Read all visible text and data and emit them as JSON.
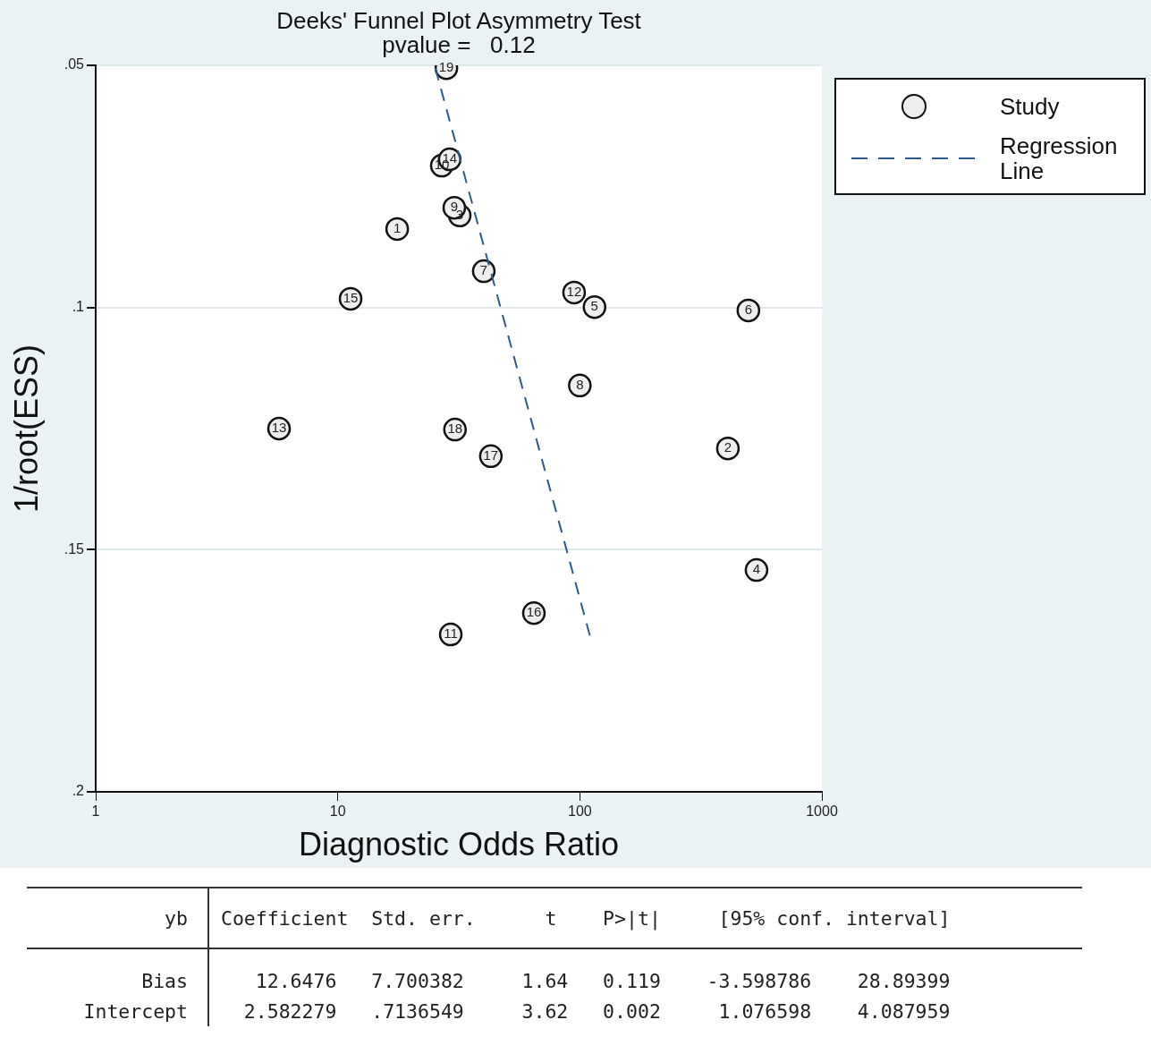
{
  "chart_data": {
    "type": "scatter",
    "title": "Deeks' Funnel Plot Asymmetry Test",
    "subtitle": "pvalue =   0.12",
    "xlabel": "Diagnostic Odds Ratio",
    "ylabel": "1/root(ESS)",
    "log": "x",
    "xlim": [
      1,
      1000
    ],
    "xticks": [
      1,
      10,
      100,
      1000
    ],
    "ylim": [
      0.2,
      0.05
    ],
    "yticks": [
      {
        "value": 0.05,
        "label": ".05"
      },
      {
        "value": 0.1,
        "label": ".1"
      },
      {
        "value": 0.15,
        "label": ".15"
      },
      {
        "value": 0.2,
        "label": ".2"
      }
    ],
    "grid": "y",
    "legend": "top right",
    "series": [
      {
        "name": "Study",
        "type": "scatter",
        "color": "#eeeeee",
        "marker": "circle",
        "x": [
          17.6,
          409,
          31.9,
          537,
          115,
          497,
          40.1,
          100,
          30.3,
          26.9,
          29.3,
          94.7,
          5.72,
          29.0,
          11.3,
          64.6,
          42.9,
          30.5,
          28.1
        ],
        "values": [
          0.0838,
          0.1291,
          0.081,
          0.1542,
          0.0999,
          0.1006,
          0.0925,
          0.1161,
          0.0794,
          0.0707,
          0.1675,
          0.0969,
          0.125,
          0.0694,
          0.0982,
          0.1631,
          0.1307,
          0.1252,
          0.0506
        ]
      },
      {
        "name": "Regression Line",
        "type": "line",
        "color": "#2c5a8c",
        "line_style": "dashed",
        "marker": "none",
        "x": [
          25.3,
          110
        ],
        "values": [
          0.0506,
          0.1677
        ]
      }
    ],
    "annotations": [
      {
        "text": "1",
        "x": 17.6,
        "y": 0.0838
      },
      {
        "text": "2",
        "x": 409,
        "y": 0.1291
      },
      {
        "text": "3",
        "x": 31.9,
        "y": 0.081
      },
      {
        "text": "4",
        "x": 537,
        "y": 0.1542
      },
      {
        "text": "5",
        "x": 115,
        "y": 0.0999
      },
      {
        "text": "6",
        "x": 497,
        "y": 0.1006
      },
      {
        "text": "7",
        "x": 40.1,
        "y": 0.0925
      },
      {
        "text": "8",
        "x": 100,
        "y": 0.1161
      },
      {
        "text": "9",
        "x": 30.3,
        "y": 0.0794
      },
      {
        "text": "10",
        "x": 26.9,
        "y": 0.0707
      },
      {
        "text": "11",
        "x": 29.3,
        "y": 0.1675
      },
      {
        "text": "12",
        "x": 94.7,
        "y": 0.0969
      },
      {
        "text": "13",
        "x": 5.72,
        "y": 0.125
      },
      {
        "text": "14",
        "x": 29.0,
        "y": 0.0694
      },
      {
        "text": "15",
        "x": 11.3,
        "y": 0.0982
      },
      {
        "text": "16",
        "x": 64.6,
        "y": 0.1631
      },
      {
        "text": "17",
        "x": 42.9,
        "y": 0.1307
      },
      {
        "text": "18",
        "x": 30.5,
        "y": 0.1252
      },
      {
        "text": "19",
        "x": 28.1,
        "y": 0.0506
      },
      "yb",
      " Coefficient  Std. err.      t    P>|t|     [95% conf. interval]",
      "Bias",
      "    12.6476   7.700382     1.64   0.119    -3.598786    28.89399",
      "Intercept",
      "   2.582279   .7136549     3.62   0.002     1.076598    4.087959"
    ]
  }
}
